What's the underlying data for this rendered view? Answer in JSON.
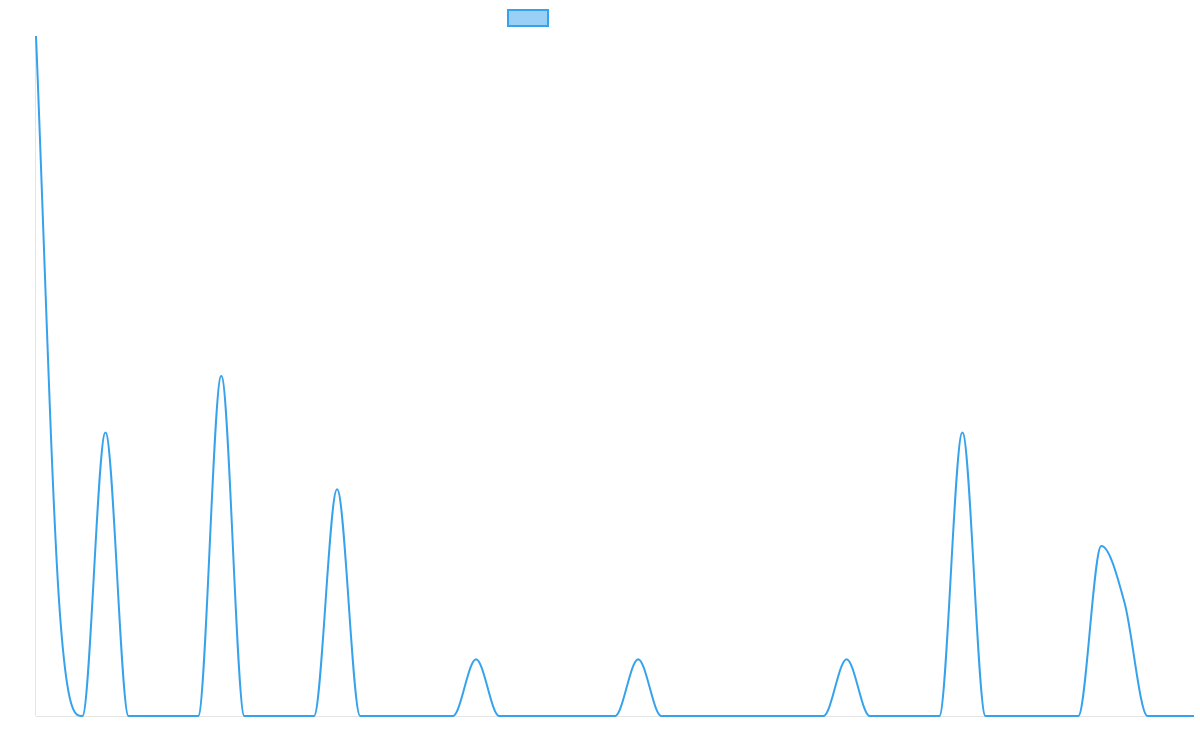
{
  "chart_data": {
    "type": "line",
    "title": "",
    "xlabel": "",
    "ylabel": "",
    "legend": {
      "placement": "top-center",
      "entries": [
        {
          "name": "",
          "color": "#36a2eb",
          "fill": "#9ad0f5"
        }
      ]
    },
    "grid": false,
    "x": [
      0,
      1,
      2,
      3,
      4,
      5,
      6,
      7,
      8,
      9,
      10,
      11,
      12,
      13,
      14,
      15,
      16,
      17,
      18,
      19,
      20,
      21,
      22,
      23,
      24,
      25,
      26,
      27,
      28,
      29,
      30,
      31,
      32,
      33,
      34,
      35,
      36,
      37,
      38,
      39,
      40,
      41,
      42,
      43,
      44,
      45,
      46,
      47,
      48,
      49,
      50
    ],
    "series": [
      {
        "name": "",
        "color": "#36a2eb",
        "values": [
          12,
          2,
          0,
          5,
          0,
          0,
          0,
          0,
          6,
          0,
          0,
          0,
          0,
          4,
          0,
          0,
          0,
          0,
          0,
          1,
          0,
          0,
          0,
          0,
          0,
          0,
          1,
          0,
          0,
          0,
          0,
          0,
          0,
          0,
          0,
          1,
          0,
          0,
          0,
          0,
          5,
          0,
          0,
          0,
          0,
          0,
          3,
          2,
          0,
          0,
          0
        ]
      }
    ],
    "xlim": [
      0,
      50
    ],
    "ylim": [
      0,
      12
    ]
  }
}
